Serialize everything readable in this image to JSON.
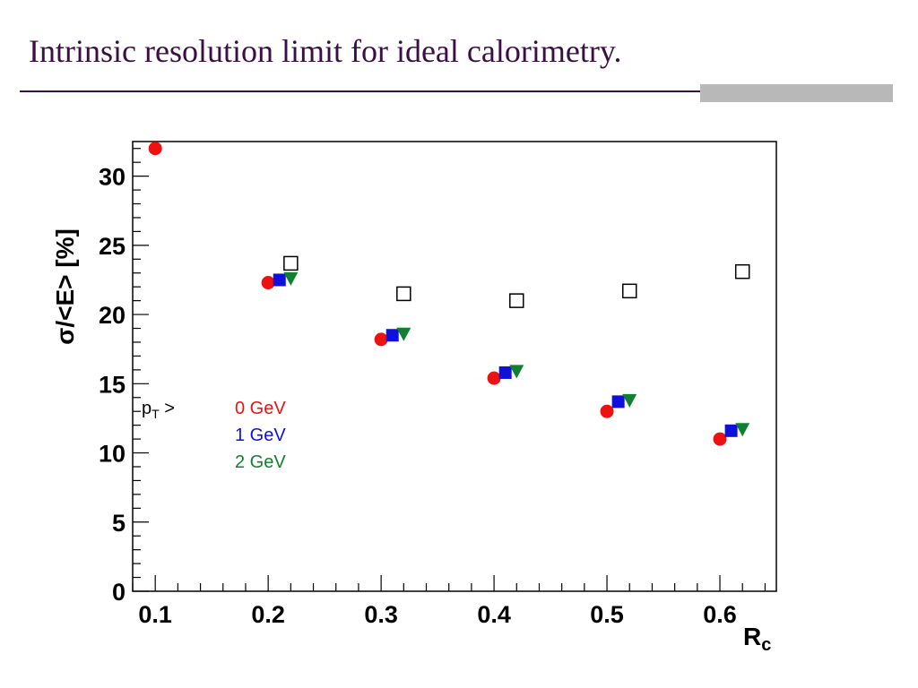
{
  "slide": {
    "title": "Intrinsic resolution limit for ideal calorimetry."
  },
  "colors": {
    "title": "#3b0f45",
    "series_0": "#ee1111",
    "series_1": "#1010dd",
    "series_2": "#108030",
    "open": "#000000"
  },
  "chart_data": {
    "type": "scatter",
    "xlabel": "R",
    "xlabel_sub": "c",
    "ylabel": "σ/<E>   [%]",
    "xlim": [
      0.08,
      0.65
    ],
    "ylim": [
      0,
      32.5
    ],
    "x_ticks": [
      "0.1",
      "0.2",
      "0.3",
      "0.4",
      "0.5",
      "0.6"
    ],
    "y_ticks": [
      "0",
      "5",
      "10",
      "15",
      "20",
      "25",
      "30"
    ],
    "legend": {
      "title": "p",
      "title_sub": "T",
      "title_suffix": " >",
      "entries": [
        "0 GeV",
        "1 GeV",
        "2 GeV"
      ]
    },
    "series": [
      {
        "name": "0 GeV",
        "marker": "circle",
        "x": [
          0.1,
          0.2,
          0.3,
          0.4,
          0.5,
          0.6
        ],
        "y": [
          32.0,
          22.3,
          18.2,
          15.4,
          13.0,
          11.0
        ]
      },
      {
        "name": "1 GeV",
        "marker": "square",
        "x": [
          0.21,
          0.31,
          0.41,
          0.51,
          0.61
        ],
        "y": [
          22.5,
          18.5,
          15.8,
          13.7,
          11.6
        ]
      },
      {
        "name": "2 GeV",
        "marker": "triangle-down",
        "x": [
          0.22,
          0.32,
          0.42,
          0.52,
          0.62
        ],
        "y": [
          22.6,
          18.6,
          15.9,
          13.8,
          11.7
        ]
      },
      {
        "marker": "open-square",
        "x": [
          0.22,
          0.32,
          0.42,
          0.52,
          0.62
        ],
        "y": [
          23.7,
          21.5,
          21.0,
          21.7,
          23.1
        ]
      }
    ]
  }
}
